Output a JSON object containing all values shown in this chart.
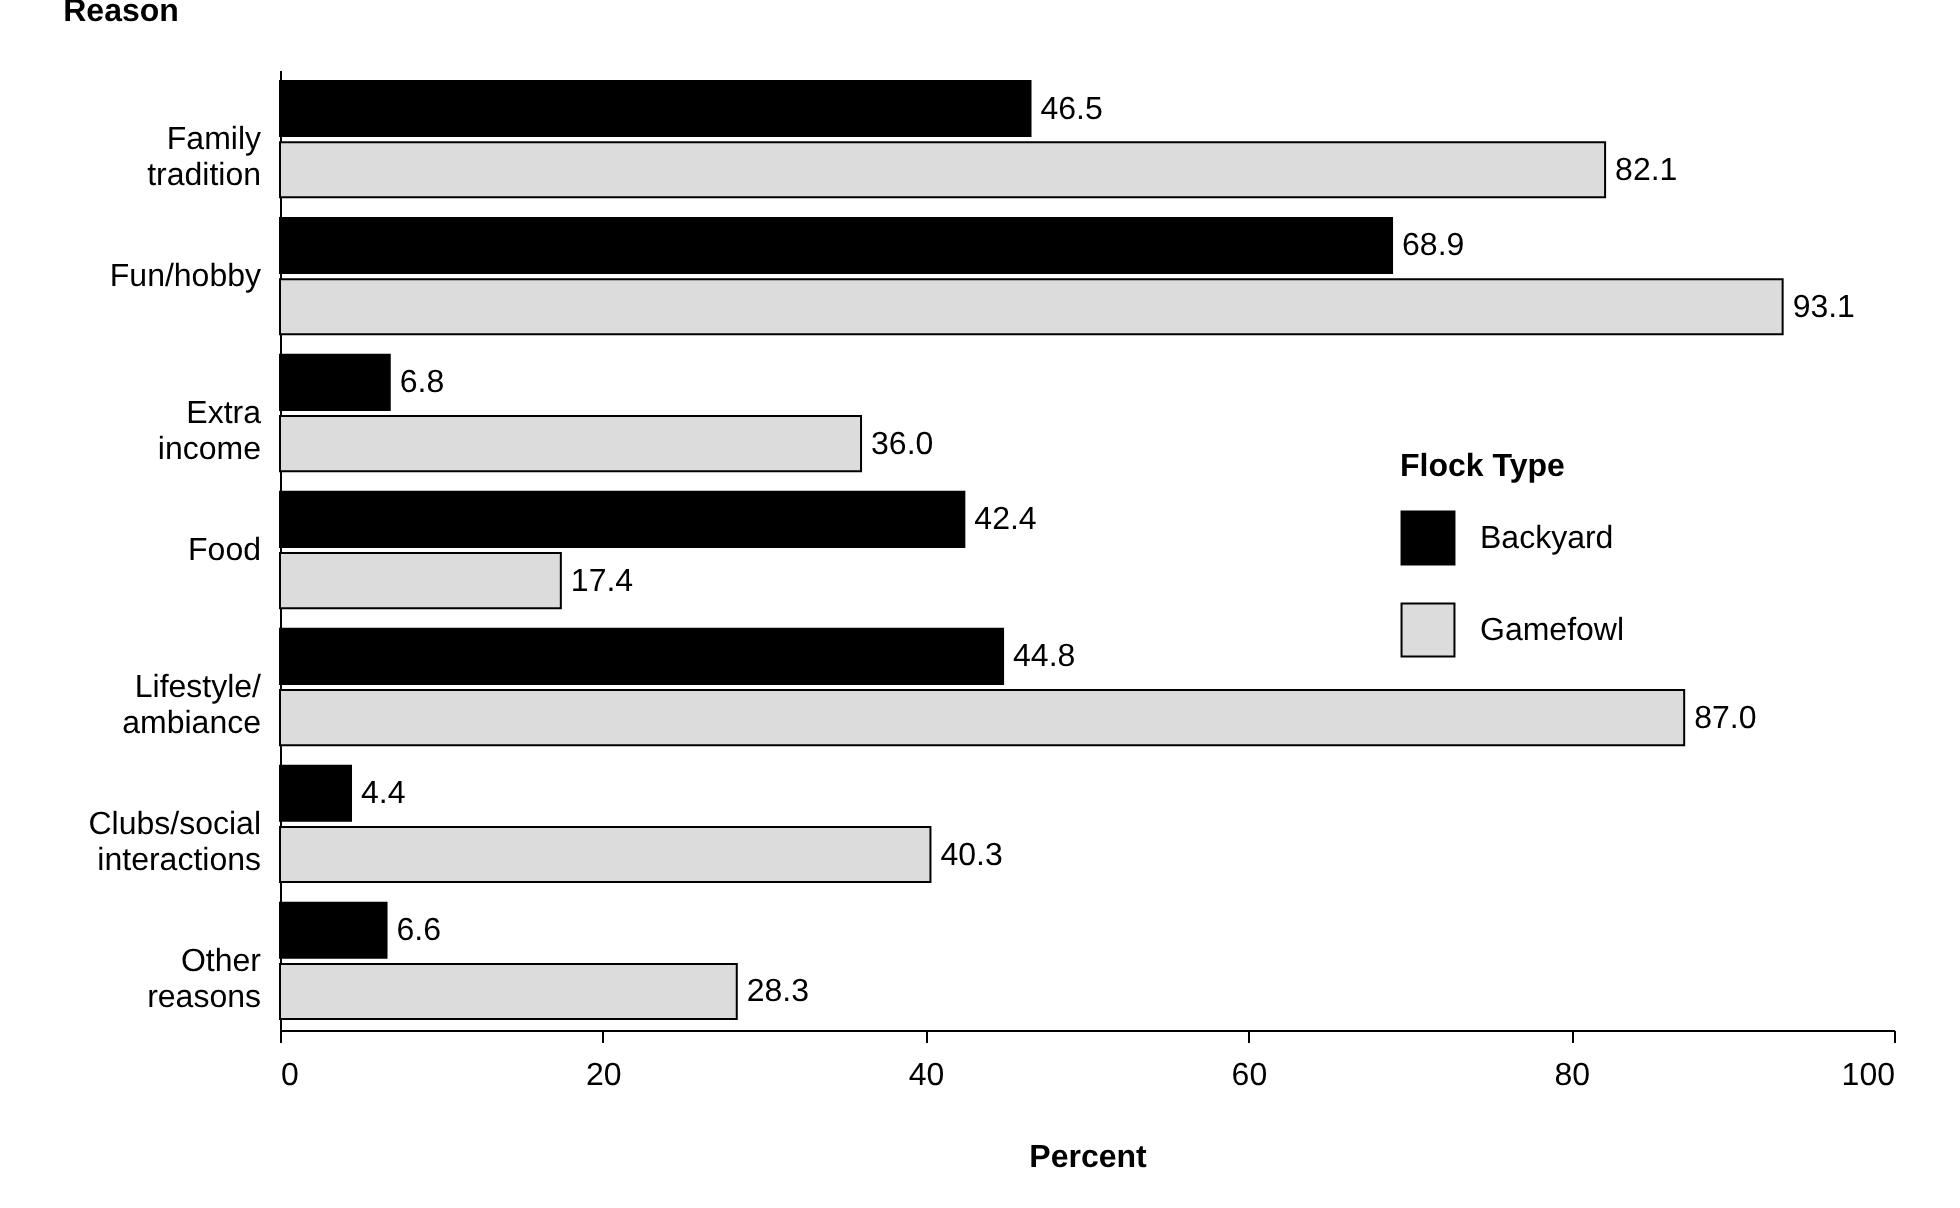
{
  "chart_data": {
    "type": "bar",
    "orientation": "horizontal",
    "xlabel": "Percent",
    "ylabel": "Reason",
    "legend_title": "Flock Type",
    "legend": "right",
    "grid": false,
    "categories": [
      "Family\ntradition",
      "Fun/hobby",
      "Extra\nincome",
      "Food",
      "Lifestyle/\nambiance",
      "Clubs/social\ninteractions",
      "Other\nreasons"
    ],
    "series": [
      {
        "name": "Backyard",
        "color": "#000000",
        "values": [
          46.5,
          68.9,
          6.8,
          42.4,
          44.8,
          4.4,
          6.6
        ],
        "value_labels": [
          "46.5",
          "68.9",
          "6.8",
          "42.4",
          "44.8",
          "4.4",
          "6.6"
        ]
      },
      {
        "name": "Gamefowl",
        "color": "#dcdcdc",
        "values": [
          82.1,
          93.1,
          36.0,
          17.4,
          87.0,
          40.3,
          28.3
        ],
        "value_labels": [
          "82.1",
          "93.1",
          "36.0",
          "17.4",
          "87.0",
          "40.3",
          "28.3"
        ]
      }
    ],
    "xlim": [
      0,
      100
    ],
    "xticks": [
      0,
      20,
      40,
      60,
      80,
      100
    ]
  }
}
